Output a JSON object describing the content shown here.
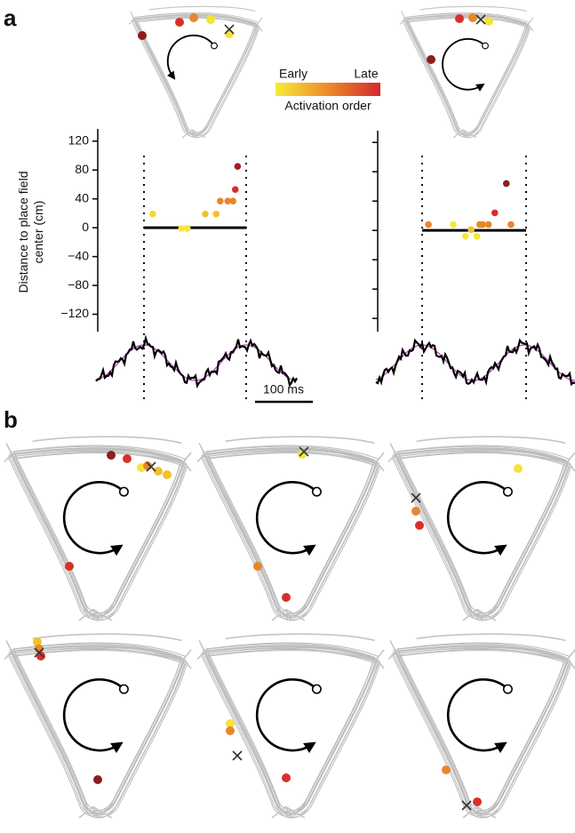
{
  "panel_labels": [
    "a",
    "b"
  ],
  "legend": {
    "early": "Early",
    "late": "Late",
    "title": "Activation order"
  },
  "scale_bar": "100 ms",
  "chart_data": [
    {
      "type": "scatter",
      "ylabel": "Distance to place field center (cm)",
      "x": [
        15,
        65,
        75,
        106,
        125,
        132,
        145,
        154,
        158,
        162
      ],
      "values": [
        19,
        -1,
        -1,
        19,
        19,
        37,
        37,
        37,
        53,
        85
      ],
      "colors": [
        "#f5d82e",
        "#f7e63a",
        "#f7e63a",
        "#f2c12c",
        "#f2c12c",
        "#e8862a",
        "#e8862a",
        "#e8862a",
        "#d7302a",
        "#a32222"
      ],
      "xlim": [
        -83,
        266
      ],
      "ylim": [
        -144,
        137
      ],
      "yticks": [
        120,
        80,
        40,
        0,
        {
          "value": -40,
          "label": "−40"
        },
        {
          "value": -80,
          "label": "−80"
        },
        {
          "value": -120,
          "label": "−120"
        }
      ]
    },
    {
      "type": "scatter",
      "x": [
        11,
        54,
        75,
        85,
        95,
        100,
        105,
        115,
        126,
        146,
        154
      ],
      "values": [
        8,
        8,
        -8,
        1,
        -8,
        8,
        8,
        8,
        24,
        64,
        8
      ],
      "colors": [
        "#e8862a",
        "#f7e63a",
        "#f7e63a",
        "#f2c12c",
        "#f7e63a",
        "#e8862a",
        "#e8862a",
        "#e8862a",
        "#d7302a",
        "#8b1e1e",
        "#e8862a"
      ],
      "xlim": [
        -80,
        265
      ],
      "ylim": [
        -138,
        136
      ],
      "yticks": [
        120,
        80,
        40,
        0,
        -40,
        -80,
        -120
      ]
    }
  ]
}
